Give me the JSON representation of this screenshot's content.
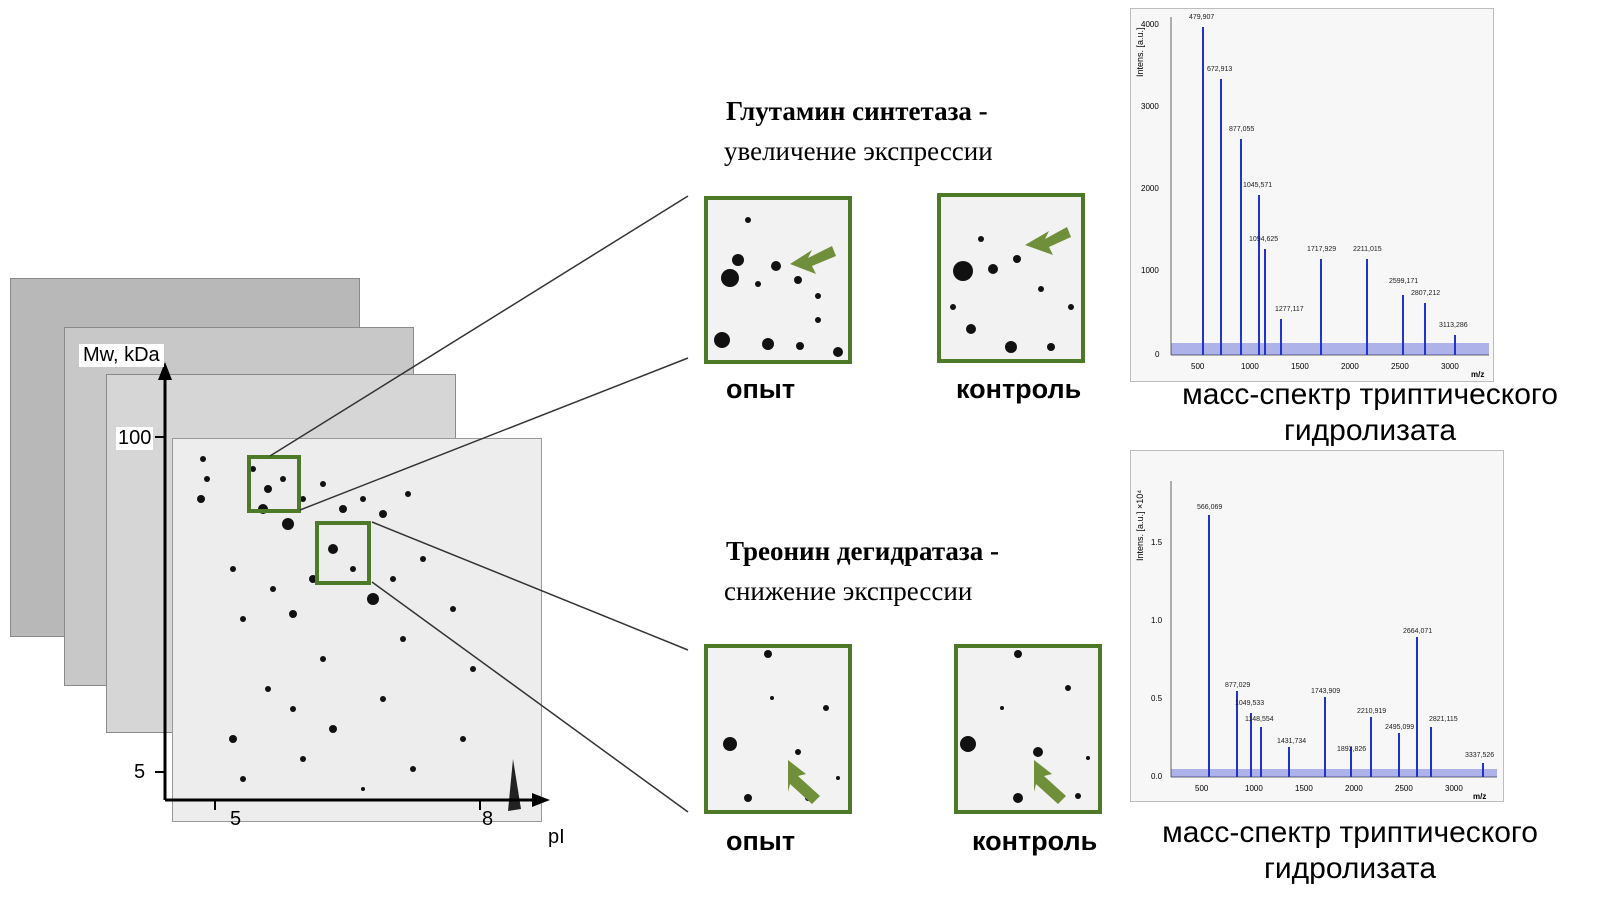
{
  "gel": {
    "y_axis_label": "Mw, kDa",
    "y_ticks": [
      "100",
      "5"
    ],
    "x_axis_label": "pI",
    "x_ticks": [
      "5",
      "8"
    ]
  },
  "proteins": [
    {
      "name": "Глутамин синтетаза -",
      "change": "увеличение экспрессии",
      "samples": [
        "опыт",
        "контроль"
      ],
      "spectrum_caption": [
        "масс-спектр триптического",
        "гидролизата"
      ],
      "spectrum": {
        "y_label": "Intens. [a.u.]",
        "y_ticks": [
          "4000",
          "3000",
          "2000",
          "1000",
          "0"
        ],
        "x_label": "m/z",
        "x_ticks": [
          "500",
          "1000",
          "1500",
          "2000",
          "2500",
          "3000"
        ],
        "peaks": [
          "479,907",
          "672,913",
          "877,055",
          "1045,571",
          "1094,625",
          "1277,117",
          "1717,929",
          "2211,015",
          "2599,171",
          "2807,212",
          "3113,286"
        ]
      }
    },
    {
      "name": "Треонин дегидратаза -",
      "change": "снижение экспрессии",
      "samples": [
        "опыт",
        "контроль"
      ],
      "spectrum_caption": [
        "масс-спектр триптического",
        "гидролизата"
      ],
      "spectrum": {
        "y_label": "Intens. [a.u.] ×10⁴",
        "y_ticks": [
          "1.5",
          "1.0",
          "0.5",
          "0.0"
        ],
        "x_label": "m/z",
        "x_ticks": [
          "500",
          "1000",
          "1500",
          "2000",
          "2500",
          "3000"
        ],
        "peaks": [
          "566,069",
          "877,029",
          "1049,533",
          "1148,554",
          "1431,734",
          "1743,909",
          "1893,826",
          "2210,919",
          "2495,099",
          "2664,071",
          "2821,115",
          "3337,526"
        ]
      }
    }
  ],
  "colors": {
    "highlight": "#4d7a28",
    "arrow": "#6f8f3a",
    "spectrum": "#2233cc"
  }
}
